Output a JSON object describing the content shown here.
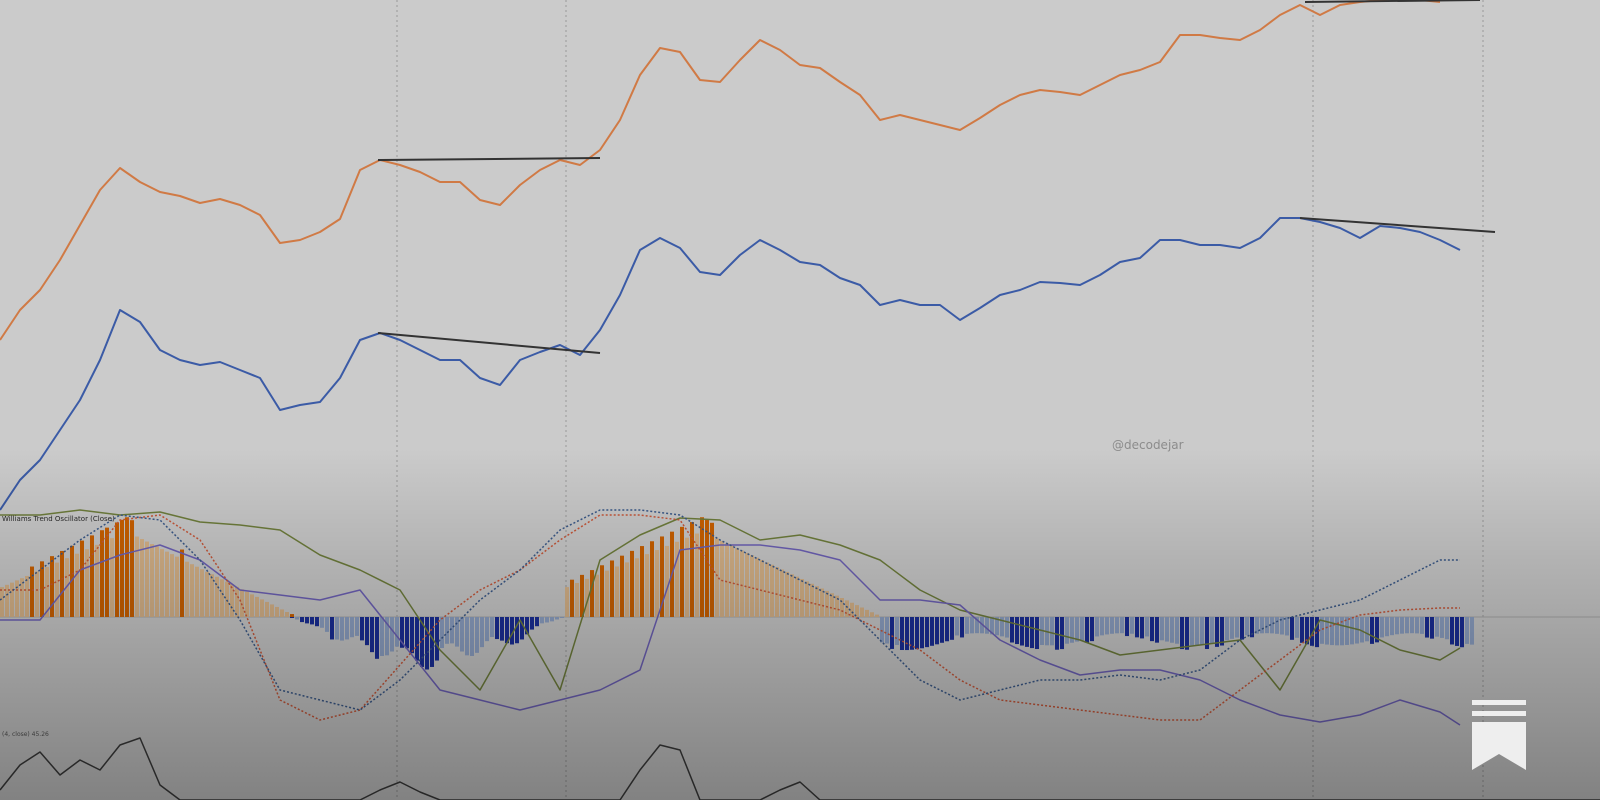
{
  "watermark": "@decodejar",
  "oscillator_title": "Williams Trend Oscillator (Close)",
  "sub_indicator_title": "(4, close) 45.26",
  "bookmark_icon": "bookmark-icon",
  "colors": {
    "background": "#cbcbcb",
    "price_a": "#d07a45",
    "price_b": "#3b5ba6",
    "trendline": "#333333",
    "hist_pos_strong": "#cc6100",
    "hist_pos_weak": "#d9b58a",
    "hist_neg_strong": "#1a2e99",
    "hist_neg_weak": "#8fa3c7",
    "osc_green": "#6f7e3c",
    "osc_purple": "#6e62b8",
    "osc_red_dotted": "#c8583a",
    "osc_blue_dotted": "#3b5a8a",
    "sub_line": "#3c3c3c",
    "grid": "#9a9a9a",
    "bookmark": "#eeeeee"
  },
  "chart_data": [
    {
      "type": "line",
      "name": "upper-orange-series",
      "x": [
        0,
        20,
        40,
        60,
        80,
        100,
        120,
        140,
        160,
        180,
        200,
        220,
        240,
        260,
        280,
        300,
        320,
        340,
        360,
        380,
        400,
        420,
        440,
        460,
        480,
        500,
        520,
        540,
        560,
        580,
        600,
        620,
        640,
        660,
        680,
        700,
        720,
        740,
        760,
        780,
        800,
        820,
        840,
        860,
        880,
        900,
        920,
        940,
        960,
        980,
        1000,
        1020,
        1040,
        1060,
        1080,
        1100,
        1120,
        1140,
        1160,
        1180,
        1200,
        1220,
        1240,
        1260,
        1280,
        1300,
        1320,
        1340,
        1360,
        1380,
        1400,
        1420,
        1440
      ],
      "y": [
        340,
        310,
        290,
        260,
        225,
        190,
        168,
        182,
        192,
        196,
        203,
        199,
        205,
        215,
        243,
        240,
        232,
        219,
        170,
        160,
        165,
        172,
        182,
        182,
        200,
        205,
        185,
        170,
        160,
        165,
        150,
        120,
        75,
        48,
        52,
        80,
        82,
        60,
        40,
        50,
        65,
        68,
        82,
        95,
        120,
        115,
        120,
        125,
        130,
        118,
        105,
        95,
        90,
        92,
        95,
        85,
        75,
        70,
        62,
        35,
        35,
        38,
        40,
        30,
        15,
        5,
        15,
        5,
        2,
        0,
        -2,
        0,
        2
      ],
      "trendlines": [
        [
          378,
          160,
          600,
          158
        ],
        [
          1305,
          2,
          1480,
          0
        ]
      ]
    },
    {
      "type": "line",
      "name": "lower-blue-series",
      "x": [
        0,
        20,
        40,
        60,
        80,
        100,
        120,
        140,
        160,
        180,
        200,
        220,
        240,
        260,
        280,
        300,
        320,
        340,
        360,
        380,
        400,
        420,
        440,
        460,
        480,
        500,
        520,
        540,
        560,
        580,
        600,
        620,
        640,
        660,
        680,
        700,
        720,
        740,
        760,
        780,
        800,
        820,
        840,
        860,
        880,
        900,
        920,
        940,
        960,
        980,
        1000,
        1020,
        1040,
        1060,
        1080,
        1100,
        1120,
        1140,
        1160,
        1180,
        1200,
        1220,
        1240,
        1260,
        1280,
        1300,
        1320,
        1340,
        1360,
        1380,
        1400,
        1420,
        1440,
        1460
      ],
      "y": [
        510,
        480,
        460,
        430,
        400,
        360,
        310,
        322,
        350,
        360,
        365,
        362,
        370,
        378,
        410,
        405,
        402,
        378,
        340,
        333,
        340,
        350,
        360,
        360,
        378,
        385,
        360,
        352,
        345,
        355,
        330,
        295,
        250,
        238,
        248,
        272,
        275,
        255,
        240,
        250,
        262,
        265,
        278,
        285,
        305,
        300,
        305,
        305,
        320,
        308,
        295,
        290,
        282,
        283,
        285,
        275,
        262,
        258,
        240,
        240,
        245,
        245,
        248,
        238,
        218,
        218,
        222,
        228,
        238,
        226,
        228,
        232,
        240,
        250
      ],
      "trendlines": [
        [
          378,
          333,
          600,
          353
        ],
        [
          1300,
          218,
          1495,
          232
        ]
      ]
    },
    {
      "type": "bar",
      "name": "oscillator-histogram",
      "x_start": 0,
      "x_step": 5,
      "values": [
        35,
        40,
        30,
        20,
        15,
        15,
        10,
        5,
        0,
        0,
        0,
        0,
        0,
        0,
        0,
        0,
        0,
        0,
        0,
        0,
        0,
        0,
        0,
        0,
        0,
        0,
        0,
        0,
        0,
        0,
        0,
        0,
        0,
        0,
        0,
        0,
        0,
        0,
        0,
        0,
        0,
        0,
        0,
        0,
        0,
        0,
        0,
        0,
        0,
        0,
        0,
        0,
        0,
        0,
        0,
        0,
        0,
        0,
        0,
        0,
        0,
        0,
        0,
        0,
        0,
        0,
        0,
        0,
        0,
        0,
        0,
        0,
        0,
        0,
        0,
        0,
        0,
        0,
        0,
        0,
        0,
        0,
        0,
        0,
        0,
        0,
        0,
        0,
        0,
        0,
        0,
        0,
        0,
        0,
        0,
        0,
        0,
        0,
        0,
        0,
        0,
        0,
        0,
        0,
        0,
        0,
        0,
        0,
        0,
        0,
        0,
        0,
        0,
        0,
        0,
        0,
        0,
        0,
        0,
        0,
        0,
        0,
        0,
        0,
        0,
        0,
        0,
        0,
        0,
        0,
        0,
        0,
        0,
        0,
        0,
        0,
        0,
        0,
        0,
        0,
        0,
        0,
        0,
        0,
        0,
        0,
        0,
        0,
        0,
        0,
        0,
        0,
        0,
        0,
        0,
        0,
        0,
        0,
        0,
        0,
        0,
        0,
        0,
        0,
        0,
        0,
        0,
        0,
        0,
        0,
        0,
        0,
        0,
        0,
        0,
        0,
        0,
        0,
        0,
        0,
        0,
        0,
        0,
        0,
        0,
        0,
        0,
        0,
        0,
        0,
        0,
        0,
        0,
        0,
        0,
        0,
        0,
        0,
        0,
        0,
        0,
        0,
        0,
        0,
        0,
        0,
        0,
        0,
        0,
        0,
        0,
        0,
        0,
        0,
        0,
        0,
        0,
        0,
        0,
        0,
        0,
        0,
        0,
        0,
        0,
        0,
        0,
        0,
        0,
        0,
        0,
        0,
        0,
        0,
        0,
        0,
        0,
        0,
        0,
        0,
        0,
        0,
        0,
        0,
        0,
        0,
        0,
        0,
        0,
        0,
        0,
        0,
        0,
        0,
        0,
        0,
        0,
        0,
        0,
        0,
        0,
        0,
        0,
        0,
        0,
        0,
        0,
        0,
        0,
        0,
        0,
        0,
        0,
        0,
        0,
        0,
        0,
        0,
        0,
        0,
        0,
        0,
        0,
        0,
        0,
        0,
        0,
        0,
        0,
        0,
        0,
        0,
        0,
        0,
        0,
        0,
        0,
        0,
        0,
        0
      ],
      "segments": [
        {
          "from": 0,
          "to": 295,
          "kind": "pos",
          "peak": 95,
          "peak_at": 125,
          "shape": "hump"
        },
        {
          "from": 290,
          "to": 560,
          "kind": "neg",
          "peak": -50,
          "peak_at": 430,
          "shape": "dip"
        },
        {
          "from": 565,
          "to": 880,
          "kind": "pos",
          "peak": 95,
          "peak_at": 700,
          "shape": "hump"
        },
        {
          "from": 880,
          "to": 1470,
          "kind": "neg",
          "peak": -45,
          "peak_at": 960,
          "shape": "flat"
        }
      ],
      "strong_bars_x": [
        30,
        40,
        50,
        60,
        70,
        80,
        90,
        100,
        105,
        115,
        120,
        125,
        130,
        180,
        290,
        300,
        305,
        310,
        315,
        330,
        360,
        365,
        370,
        375,
        400,
        405,
        410,
        415,
        420,
        425,
        430,
        435,
        495,
        500,
        505,
        510,
        515,
        520,
        525,
        530,
        535,
        570,
        580,
        590,
        600,
        610,
        620,
        630,
        640,
        650,
        660,
        670,
        680,
        690,
        700,
        705,
        710,
        890,
        900,
        905,
        910,
        915,
        920,
        925,
        930,
        935,
        940,
        945,
        950,
        960,
        1010,
        1015,
        1020,
        1025,
        1030,
        1035,
        1055,
        1060,
        1085,
        1090,
        1125,
        1135,
        1140,
        1150,
        1155,
        1180,
        1185,
        1205,
        1215,
        1220,
        1240,
        1250,
        1290,
        1300,
        1305,
        1310,
        1315,
        1370,
        1375,
        1425,
        1430,
        1450,
        1455,
        1460
      ]
    },
    {
      "type": "line",
      "name": "oscillator-lines",
      "series": [
        {
          "name": "green",
          "x": [
            0,
            40,
            80,
            120,
            160,
            200,
            240,
            280,
            320,
            360,
            400,
            440,
            480,
            520,
            560,
            600,
            640,
            680,
            720,
            760,
            800,
            840,
            880,
            920,
            960,
            1000,
            1040,
            1080,
            1120,
            1160,
            1200,
            1240,
            1280,
            1320,
            1360,
            1400,
            1440,
            1460
          ],
          "y": [
            515,
            515,
            510,
            515,
            512,
            522,
            525,
            530,
            555,
            570,
            590,
            650,
            690,
            620,
            690,
            560,
            535,
            518,
            520,
            540,
            535,
            545,
            560,
            590,
            610,
            620,
            630,
            640,
            655,
            650,
            645,
            640,
            690,
            620,
            630,
            650,
            660,
            648
          ]
        },
        {
          "name": "purple",
          "x": [
            0,
            40,
            80,
            120,
            160,
            200,
            240,
            280,
            320,
            360,
            400,
            440,
            480,
            520,
            560,
            600,
            640,
            680,
            720,
            760,
            800,
            840,
            880,
            920,
            960,
            1000,
            1040,
            1080,
            1120,
            1160,
            1200,
            1240,
            1280,
            1320,
            1360,
            1400,
            1440,
            1460
          ],
          "y": [
            620,
            620,
            570,
            555,
            545,
            560,
            590,
            595,
            600,
            590,
            640,
            690,
            700,
            710,
            700,
            690,
            670,
            550,
            545,
            545,
            550,
            560,
            600,
            600,
            605,
            640,
            660,
            675,
            670,
            670,
            680,
            700,
            715,
            722,
            715,
            700,
            712,
            725
          ]
        },
        {
          "name": "red-dotted",
          "x": [
            0,
            40,
            80,
            120,
            160,
            200,
            240,
            280,
            320,
            360,
            400,
            440,
            480,
            520,
            560,
            600,
            640,
            680,
            720,
            760,
            800,
            840,
            880,
            920,
            960,
            1000,
            1040,
            1080,
            1120,
            1160,
            1200,
            1240,
            1280,
            1320,
            1360,
            1400,
            1440,
            1460
          ],
          "y": [
            590,
            590,
            570,
            520,
            515,
            540,
            600,
            700,
            720,
            710,
            665,
            620,
            590,
            570,
            540,
            515,
            515,
            520,
            580,
            590,
            600,
            610,
            630,
            650,
            680,
            700,
            705,
            710,
            715,
            720,
            720,
            690,
            660,
            630,
            615,
            610,
            608,
            608
          ]
        },
        {
          "name": "blue-dotted",
          "x": [
            0,
            40,
            80,
            120,
            160,
            200,
            240,
            280,
            320,
            360,
            400,
            440,
            480,
            520,
            560,
            600,
            640,
            680,
            720,
            760,
            800,
            840,
            880,
            920,
            960,
            1000,
            1040,
            1080,
            1120,
            1160,
            1200,
            1240,
            1280,
            1320,
            1360,
            1400,
            1440,
            1460
          ],
          "y": [
            600,
            570,
            540,
            515,
            520,
            560,
            620,
            690,
            700,
            710,
            680,
            640,
            600,
            570,
            530,
            510,
            510,
            515,
            540,
            560,
            580,
            600,
            640,
            680,
            700,
            690,
            680,
            680,
            675,
            680,
            670,
            640,
            620,
            610,
            600,
            580,
            560,
            560
          ]
        }
      ]
    },
    {
      "type": "line",
      "name": "bottom-sub-indicator",
      "x": [
        0,
        20,
        40,
        60,
        80,
        100,
        120,
        140,
        160,
        180,
        200,
        220,
        240,
        260,
        280,
        300,
        320,
        340,
        360,
        380,
        400,
        420,
        440,
        460,
        480,
        500,
        520,
        540,
        560,
        580,
        600,
        620,
        640,
        660,
        680,
        700,
        720,
        740,
        760,
        780,
        800,
        820,
        840,
        860,
        880,
        900,
        920,
        940,
        960,
        980,
        1000,
        1020,
        1040,
        1060,
        1080,
        1100,
        1120,
        1140,
        1160,
        1180,
        1200,
        1220,
        1240,
        1260,
        1280,
        1300,
        1320,
        1340,
        1360,
        1380,
        1400,
        1420,
        1440,
        1460,
        1480,
        1500,
        1520,
        1540,
        1560,
        1580,
        1600
      ],
      "y": [
        790,
        765,
        752,
        775,
        760,
        770,
        745,
        738,
        785,
        800,
        800,
        800,
        800,
        800,
        800,
        800,
        800,
        800,
        800,
        790,
        782,
        792,
        800,
        800,
        800,
        800,
        800,
        800,
        800,
        800,
        800,
        800,
        770,
        745,
        750,
        800,
        800,
        800,
        800,
        790,
        782,
        800,
        800,
        800,
        800,
        800,
        800,
        800,
        800,
        800,
        800,
        800,
        800,
        800,
        800,
        800,
        800,
        800,
        800,
        800,
        800,
        800,
        800,
        800,
        800,
        800,
        800,
        800,
        800,
        800,
        800,
        800,
        800,
        800,
        800,
        800,
        800,
        800,
        800,
        800,
        800
      ]
    }
  ]
}
